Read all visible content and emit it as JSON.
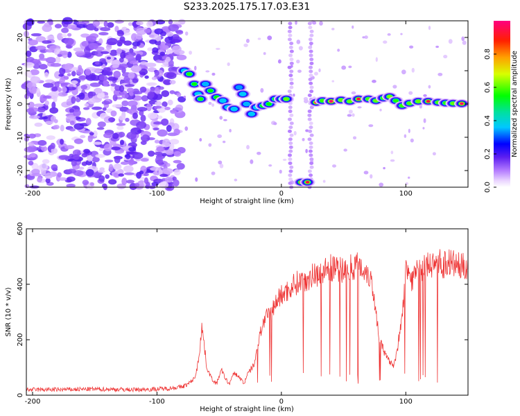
{
  "title": "S233.2025.175.17.03.E31",
  "chart_data": [
    {
      "type": "heatmap",
      "xlabel": "Height of straight line (km)",
      "ylabel": "Frequency (Hz)",
      "xlim": [
        -205,
        150
      ],
      "ylim": [
        -25,
        25
      ],
      "xticks": [
        -200,
        -100,
        0,
        100
      ],
      "yticks": [
        -20,
        -10,
        0,
        10,
        20
      ],
      "colorbar": {
        "label": "Normalized spectral amplitude",
        "range": [
          0,
          1
        ],
        "ticks": [
          0.0,
          0.2,
          0.4,
          0.6,
          0.8
        ],
        "tick_labels": [
          "0.0",
          "0.2",
          "0.4",
          "0.6",
          "0.8"
        ]
      },
      "noise_region": {
        "x_range": [
          -205,
          -80
        ],
        "y_range": [
          -25,
          25
        ],
        "amplitude": 0.15
      },
      "ridge": [
        {
          "x": -78,
          "y": 10,
          "a": 0.45
        },
        {
          "x": -74,
          "y": 9,
          "a": 0.55
        },
        {
          "x": -70,
          "y": 6,
          "a": 0.5
        },
        {
          "x": -67,
          "y": 3,
          "a": 0.45
        },
        {
          "x": -65,
          "y": 1.5,
          "a": 0.55
        },
        {
          "x": -61,
          "y": 6,
          "a": 0.4
        },
        {
          "x": -57,
          "y": 4,
          "a": 0.5
        },
        {
          "x": -52,
          "y": 2,
          "a": 0.5
        },
        {
          "x": -47,
          "y": 1,
          "a": 0.45
        },
        {
          "x": -43,
          "y": -1,
          "a": 0.45
        },
        {
          "x": -38,
          "y": -1.5,
          "a": 0.45
        },
        {
          "x": -34,
          "y": 5,
          "a": 0.35
        },
        {
          "x": -31,
          "y": 3,
          "a": 0.45
        },
        {
          "x": -28,
          "y": 0,
          "a": 0.4
        },
        {
          "x": -24,
          "y": -3,
          "a": 0.45
        },
        {
          "x": -20,
          "y": -1,
          "a": 0.45
        },
        {
          "x": -15,
          "y": -0.5,
          "a": 0.5
        },
        {
          "x": -10,
          "y": 0,
          "a": 0.5
        },
        {
          "x": -5,
          "y": 1.5,
          "a": 0.5
        },
        {
          "x": 0,
          "y": 1.5,
          "a": 0.6
        },
        {
          "x": 4,
          "y": 1.5,
          "a": 0.7
        },
        {
          "x": 16,
          "y": -23.5,
          "a": 0.85
        },
        {
          "x": 21,
          "y": -23.5,
          "a": 0.8
        },
        {
          "x": 28,
          "y": 0.5,
          "a": 0.9
        },
        {
          "x": 33,
          "y": 1,
          "a": 0.6
        },
        {
          "x": 40,
          "y": 0.8,
          "a": 0.95
        },
        {
          "x": 48,
          "y": 1.2,
          "a": 0.7
        },
        {
          "x": 55,
          "y": 0.8,
          "a": 0.7
        },
        {
          "x": 62,
          "y": 1.5,
          "a": 0.8
        },
        {
          "x": 70,
          "y": 1.5,
          "a": 0.65
        },
        {
          "x": 76,
          "y": 1,
          "a": 0.7
        },
        {
          "x": 82,
          "y": 1.8,
          "a": 0.6
        },
        {
          "x": 87,
          "y": 2.2,
          "a": 0.75
        },
        {
          "x": 92,
          "y": 1,
          "a": 0.55
        },
        {
          "x": 97,
          "y": -0.5,
          "a": 0.6
        },
        {
          "x": 103,
          "y": 0.2,
          "a": 0.65
        },
        {
          "x": 110,
          "y": 0.8,
          "a": 0.7
        },
        {
          "x": 118,
          "y": 0.8,
          "a": 0.8
        },
        {
          "x": 126,
          "y": 0.5,
          "a": 0.65
        },
        {
          "x": 132,
          "y": 0.3,
          "a": 0.6
        },
        {
          "x": 138,
          "y": 0.2,
          "a": 0.7
        },
        {
          "x": 145,
          "y": 0.1,
          "a": 0.9
        }
      ]
    },
    {
      "type": "line",
      "xlabel": "Height of straight line (km)",
      "ylabel": "SNR (10 * v/v)",
      "xlim": [
        -205,
        150
      ],
      "ylim": [
        0,
        600
      ],
      "xticks": [
        -200,
        -100,
        0,
        100
      ],
      "yticks": [
        0,
        200,
        400,
        600
      ],
      "color": "#ee3333",
      "series": [
        {
          "values_note": "",
          "x": [
            -205,
            -180,
            -150,
            -120,
            -100,
            -90,
            -80,
            -75,
            -70,
            -68,
            -66,
            -64,
            -62,
            -60,
            -58,
            -56,
            -54,
            -52,
            -50,
            -48,
            -45,
            -42,
            -40,
            -38,
            -35,
            -32,
            -30,
            -28,
            -25,
            -22,
            -20,
            -18,
            -15,
            -12,
            -10,
            -8,
            -5,
            -2,
            0,
            3,
            6,
            10,
            15,
            20,
            25,
            30,
            35,
            40,
            45,
            50,
            55,
            60,
            65,
            70,
            73,
            76,
            78,
            80,
            82,
            85,
            88,
            90,
            93,
            95,
            98,
            100,
            102,
            105,
            110,
            115,
            120,
            125,
            130,
            135,
            140,
            145,
            150
          ],
          "y": [
            20,
            20,
            22,
            20,
            22,
            25,
            30,
            40,
            60,
            90,
            150,
            250,
            180,
            100,
            80,
            60,
            50,
            40,
            70,
            90,
            60,
            40,
            60,
            80,
            70,
            55,
            40,
            70,
            90,
            110,
            150,
            200,
            260,
            280,
            290,
            300,
            330,
            350,
            360,
            370,
            380,
            400,
            410,
            420,
            430,
            440,
            450,
            460,
            450,
            450,
            460,
            470,
            460,
            440,
            400,
            300,
            230,
            190,
            160,
            130,
            120,
            110,
            150,
            230,
            330,
            460,
            440,
            420,
            450,
            460,
            470,
            480,
            470,
            480,
            470,
            460,
            470
          ]
        }
      ]
    }
  ]
}
